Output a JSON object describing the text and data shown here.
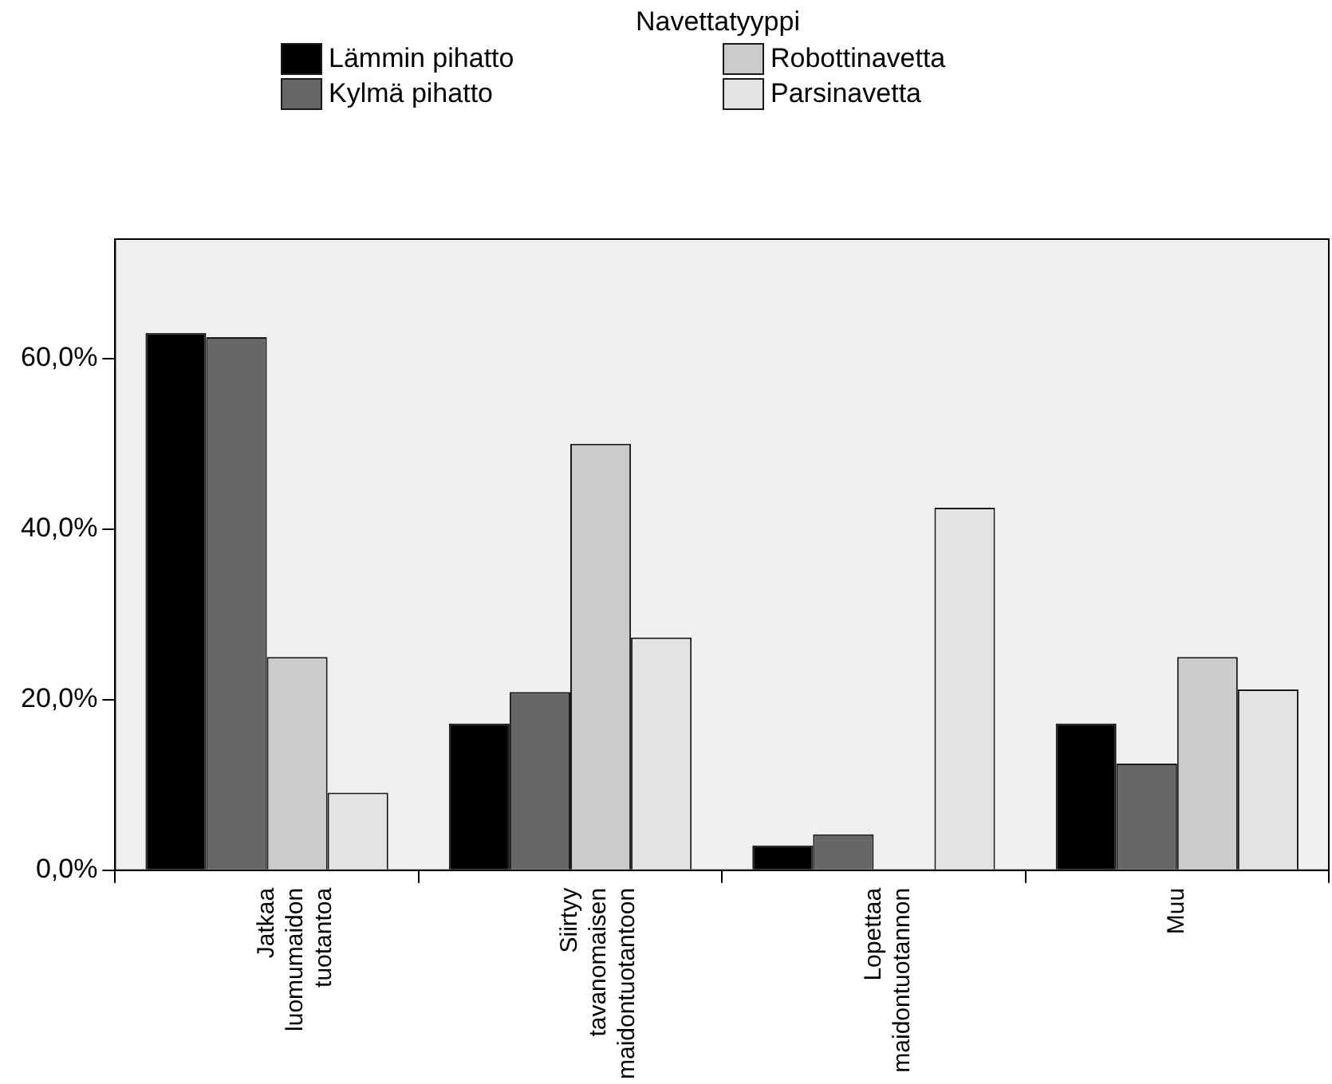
{
  "chart_data": {
    "type": "bar",
    "legend_title": "Navettatyyppi",
    "legend": "top",
    "categories": [
      "Jatkaa luomumaidon tuotantoa",
      "Siirtyy tavanomaisen maidontuotantoon",
      "Lopettaa maidontuotannon",
      "Muu"
    ],
    "series": [
      {
        "name": "Lämmin pihatto",
        "color": "#000000",
        "values": [
          63.0,
          17.2,
          2.9,
          17.2
        ]
      },
      {
        "name": "Kylmä pihatto",
        "color": "#676767",
        "values": [
          62.5,
          20.9,
          4.2,
          12.5
        ]
      },
      {
        "name": "Robottinavetta",
        "color": "#cbcbcb",
        "values": [
          25.0,
          50.0,
          null,
          25.0
        ]
      },
      {
        "name": "Parsinavetta",
        "color": "#e3e3e3",
        "values": [
          9.1,
          27.3,
          42.5,
          21.2
        ]
      }
    ],
    "ylim": [
      0,
      74
    ],
    "yticks": [
      {
        "value": 0,
        "label": "0,0%"
      },
      {
        "value": 20,
        "label": "20,0%"
      },
      {
        "value": 40,
        "label": "40,0%"
      },
      {
        "value": 60,
        "label": "60,0%"
      }
    ],
    "grid": false
  }
}
